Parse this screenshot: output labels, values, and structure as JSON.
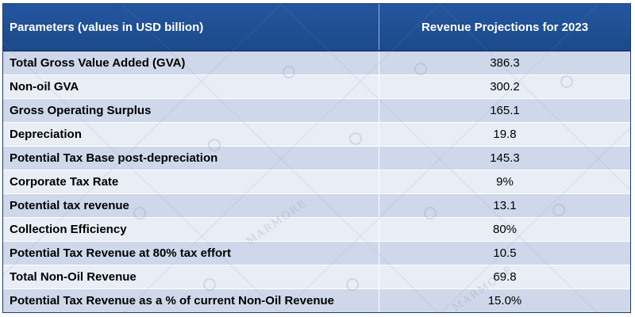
{
  "header": {
    "param_label": "Parameters (values in USD billion)",
    "value_label": "Revenue Projections for 2023"
  },
  "rows": [
    {
      "param": "Total Gross Value Added (GVA)",
      "value": "386.3"
    },
    {
      "param": "Non-oil GVA",
      "value": "300.2"
    },
    {
      "param": "Gross Operating Surplus",
      "value": "165.1"
    },
    {
      "param": "Depreciation",
      "value": "19.8"
    },
    {
      "param": "Potential Tax Base post-depreciation",
      "value": "145.3"
    },
    {
      "param": "Corporate Tax Rate",
      "value": "9%"
    },
    {
      "param": "Potential tax revenue",
      "value": "13.1"
    },
    {
      "param": "Collection Efficiency",
      "value": "80%"
    },
    {
      "param": "Potential Tax Revenue at 80% tax effort",
      "value": "10.5"
    },
    {
      "param": "Total Non-Oil Revenue",
      "value": "69.8"
    },
    {
      "param": "Potential Tax Revenue as a % of current Non-Oil Revenue",
      "value": "15.0%"
    }
  ],
  "watermark": {
    "text": "MARMORE"
  },
  "colors": {
    "header_bg": "#1f4e8c",
    "row_odd": "#cfd8ea",
    "row_even": "#e8edf6"
  }
}
